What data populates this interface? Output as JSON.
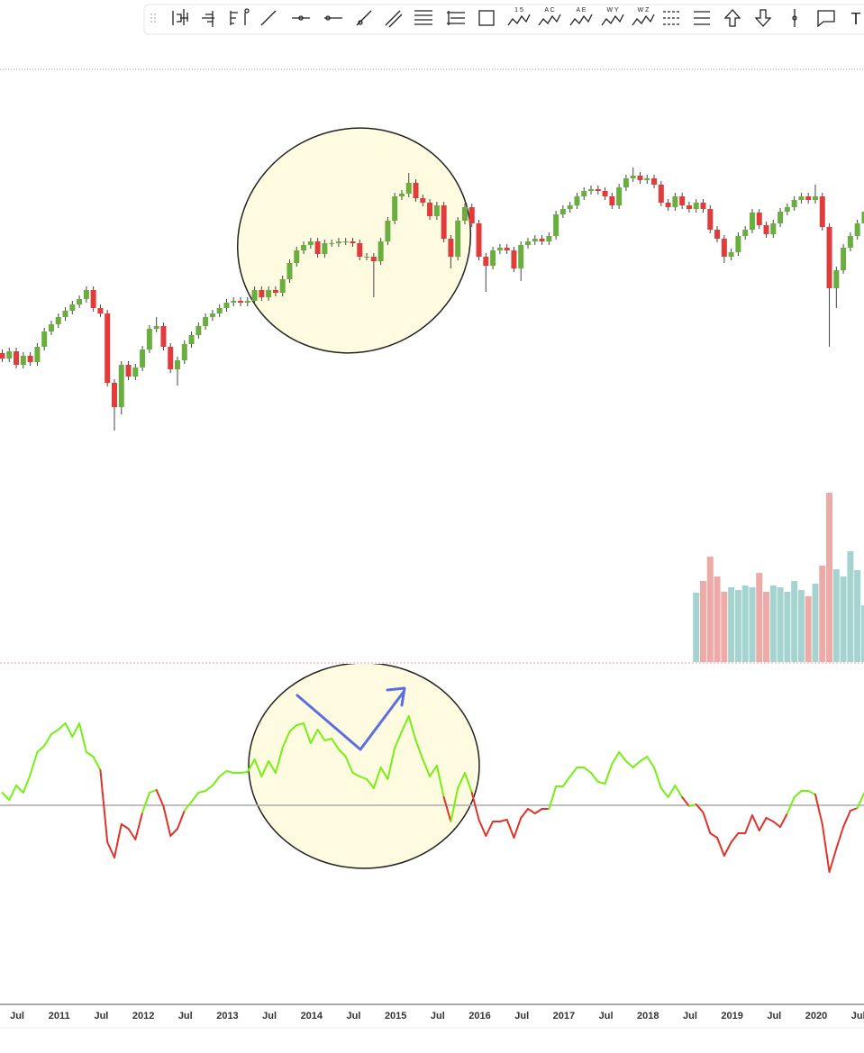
{
  "toolbar": {
    "labels": [
      "1 5",
      "A C",
      "A E",
      "W Y",
      "W Z",
      "T"
    ]
  },
  "chart_data": {
    "type": "candlestick",
    "categories": [
      null,
      null,
      "Jul",
      null,
      null,
      null,
      null,
      null,
      "2011",
      null,
      null,
      null,
      null,
      null,
      "Jul",
      null,
      null,
      null,
      null,
      null,
      "2012",
      null,
      null,
      null,
      null,
      null,
      "Jul",
      null,
      null,
      null,
      null,
      null,
      "2013",
      null,
      null,
      null,
      null,
      null,
      "Jul",
      null,
      null,
      null,
      null,
      null,
      "2014",
      null,
      null,
      null,
      null,
      null,
      "Jul",
      null,
      null,
      null,
      null,
      null,
      "2015",
      null,
      null,
      null,
      null,
      null,
      "Jul",
      null,
      null,
      null,
      null,
      null,
      "2016",
      null,
      null,
      null,
      null,
      null,
      "Jul",
      null,
      null,
      null,
      null,
      null,
      "2017",
      null,
      null,
      null,
      null,
      null,
      "Jul",
      null,
      null,
      null,
      null,
      null,
      "2018",
      null,
      null,
      null,
      null,
      null,
      "Jul",
      null,
      null,
      null,
      null,
      null,
      "2019",
      null,
      null,
      null,
      null,
      null,
      "Jul",
      null,
      null,
      null,
      null,
      null,
      "2020",
      null,
      null,
      null,
      null,
      null,
      "Jul",
      null
    ],
    "open": [
      208,
      202,
      210,
      195,
      205,
      198,
      215,
      232,
      240,
      248,
      255,
      262,
      268,
      278,
      258,
      252,
      175,
      148,
      195,
      182,
      192,
      212,
      235,
      238,
      215,
      190,
      200,
      218,
      228,
      238,
      248,
      252,
      258,
      264,
      266,
      264,
      266,
      278,
      270,
      278,
      275,
      290,
      308,
      322,
      328,
      332,
      318,
      330,
      330,
      332,
      332,
      330,
      315,
      315,
      310,
      332,
      355,
      382,
      385,
      397,
      380,
      375,
      360,
      372,
      335,
      315,
      355,
      370,
      352,
      315,
      305,
      322,
      325,
      322,
      302,
      328,
      332,
      335,
      332,
      338,
      362,
      368,
      372,
      382,
      388,
      390,
      388,
      382,
      372,
      392,
      402,
      405,
      400,
      402,
      395,
      375,
      370,
      382,
      372,
      368,
      375,
      368,
      345,
      335,
      315,
      320,
      338,
      345,
      364,
      350,
      340,
      352,
      365,
      370,
      378,
      382,
      378,
      382,
      348,
      280,
      300,
      325,
      338,
      352
    ],
    "high": [
      212,
      214,
      214,
      209,
      209,
      219,
      236,
      244,
      252,
      259,
      266,
      272,
      282,
      282,
      262,
      256,
      179,
      199,
      199,
      196,
      216,
      239,
      248,
      242,
      219,
      204,
      222,
      232,
      242,
      252,
      256,
      262,
      268,
      270,
      270,
      270,
      282,
      282,
      282,
      282,
      294,
      312,
      326,
      332,
      336,
      336,
      334,
      334,
      336,
      336,
      336,
      334,
      319,
      319,
      336,
      359,
      386,
      389,
      408,
      401,
      384,
      379,
      376,
      376,
      339,
      359,
      374,
      374,
      356,
      319,
      326,
      329,
      329,
      326,
      332,
      336,
      339,
      339,
      342,
      366,
      372,
      376,
      386,
      392,
      394,
      394,
      392,
      386,
      396,
      406,
      414,
      409,
      406,
      406,
      399,
      379,
      386,
      386,
      376,
      379,
      379,
      372,
      349,
      339,
      324,
      342,
      349,
      368,
      368,
      354,
      356,
      369,
      374,
      382,
      386,
      386,
      395,
      386,
      352,
      304,
      329,
      342,
      356,
      369
    ],
    "low": [
      198,
      198,
      191,
      191,
      194,
      194,
      211,
      228,
      236,
      244,
      251,
      258,
      264,
      254,
      248,
      171,
      122,
      140,
      178,
      178,
      188,
      208,
      231,
      211,
      186,
      172,
      196,
      214,
      224,
      234,
      244,
      248,
      254,
      260,
      260,
      260,
      262,
      266,
      266,
      271,
      271,
      286,
      304,
      318,
      324,
      314,
      314,
      326,
      326,
      328,
      326,
      311,
      311,
      270,
      306,
      328,
      351,
      378,
      381,
      376,
      371,
      356,
      356,
      331,
      302,
      311,
      351,
      348,
      311,
      276,
      301,
      318,
      318,
      298,
      288,
      324,
      328,
      328,
      328,
      334,
      358,
      364,
      368,
      378,
      384,
      384,
      378,
      368,
      368,
      388,
      398,
      396,
      396,
      391,
      371,
      366,
      366,
      368,
      364,
      364,
      364,
      341,
      331,
      308,
      311,
      316,
      334,
      341,
      346,
      336,
      336,
      348,
      361,
      366,
      374,
      374,
      374,
      344,
      215,
      258,
      296,
      321,
      334,
      348
    ],
    "close": [
      202,
      210,
      195,
      205,
      198,
      215,
      232,
      240,
      248,
      255,
      262,
      268,
      278,
      258,
      252,
      175,
      148,
      195,
      182,
      192,
      212,
      235,
      238,
      215,
      190,
      200,
      218,
      228,
      238,
      248,
      252,
      258,
      264,
      266,
      264,
      266,
      278,
      270,
      278,
      275,
      290,
      308,
      322,
      328,
      332,
      318,
      330,
      330,
      332,
      332,
      330,
      315,
      315,
      310,
      332,
      355,
      382,
      385,
      397,
      380,
      375,
      360,
      372,
      335,
      315,
      355,
      370,
      352,
      315,
      305,
      322,
      325,
      322,
      302,
      328,
      332,
      335,
      332,
      338,
      362,
      368,
      372,
      382,
      388,
      390,
      388,
      382,
      372,
      392,
      402,
      405,
      400,
      402,
      395,
      375,
      370,
      382,
      372,
      368,
      375,
      368,
      345,
      335,
      315,
      320,
      338,
      345,
      364,
      350,
      340,
      352,
      365,
      370,
      378,
      382,
      378,
      382,
      348,
      280,
      300,
      325,
      338,
      352,
      365
    ],
    "ylim": [
      100,
      520
    ],
    "up_color": "#6aae3f",
    "down_color": "#e03c3c",
    "volume": {
      "values": [
        null,
        null,
        null,
        null,
        null,
        null,
        null,
        null,
        null,
        null,
        null,
        null,
        null,
        null,
        null,
        null,
        null,
        null,
        null,
        null,
        null,
        null,
        null,
        null,
        null,
        null,
        null,
        null,
        null,
        null,
        null,
        null,
        null,
        null,
        null,
        null,
        null,
        null,
        null,
        null,
        null,
        null,
        null,
        null,
        null,
        null,
        null,
        null,
        null,
        null,
        null,
        null,
        null,
        null,
        null,
        null,
        null,
        null,
        null,
        null,
        null,
        null,
        null,
        null,
        null,
        null,
        null,
        null,
        null,
        null,
        null,
        null,
        null,
        null,
        null,
        null,
        null,
        null,
        null,
        null,
        null,
        null,
        null,
        null,
        null,
        null,
        null,
        null,
        null,
        null,
        null,
        null,
        null,
        null,
        null,
        null,
        null,
        null,
        null,
        77,
        90,
        117,
        95,
        78,
        83,
        80,
        85,
        83,
        99,
        78,
        85,
        83,
        78,
        90,
        80,
        73,
        87,
        107,
        188,
        103,
        95,
        123,
        102,
        63
      ],
      "ylim": [
        0,
        200
      ],
      "up_color": "#a5d4d0",
      "down_color": "#eeaaa6"
    },
    "oscillator": {
      "values": [
        14,
        6,
        22,
        14,
        34,
        59,
        66,
        79,
        84,
        91,
        76,
        91,
        59,
        54,
        39,
        -41,
        -58,
        -21,
        -26,
        -38,
        -8,
        14,
        17,
        -1,
        -34,
        -26,
        -6,
        4,
        14,
        16,
        22,
        32,
        38,
        36,
        36,
        37,
        51,
        32,
        49,
        36,
        64,
        82,
        89,
        91,
        69,
        84,
        72,
        74,
        62,
        54,
        36,
        32,
        29,
        19,
        42,
        29,
        64,
        82,
        99,
        72,
        51,
        32,
        44,
        9,
        -18,
        19,
        36,
        14,
        -16,
        -34,
        -18,
        -18,
        -16,
        -36,
        -14,
        -4,
        -9,
        -4,
        -4,
        21,
        21,
        32,
        42,
        42,
        36,
        26,
        24,
        46,
        59,
        49,
        42,
        49,
        54,
        42,
        19,
        9,
        22,
        9,
        -1,
        1,
        -8,
        -31,
        -36,
        -56,
        -41,
        -31,
        -31,
        -11,
        -28,
        -14,
        -18,
        -24,
        -9,
        9,
        16,
        16,
        12,
        -21,
        -74,
        -48,
        -24,
        -6,
        -3,
        14
      ],
      "ylim": [
        -210,
        150
      ],
      "baseline": 0,
      "up_color": "#76f013",
      "down_color": "#e0332b"
    }
  }
}
